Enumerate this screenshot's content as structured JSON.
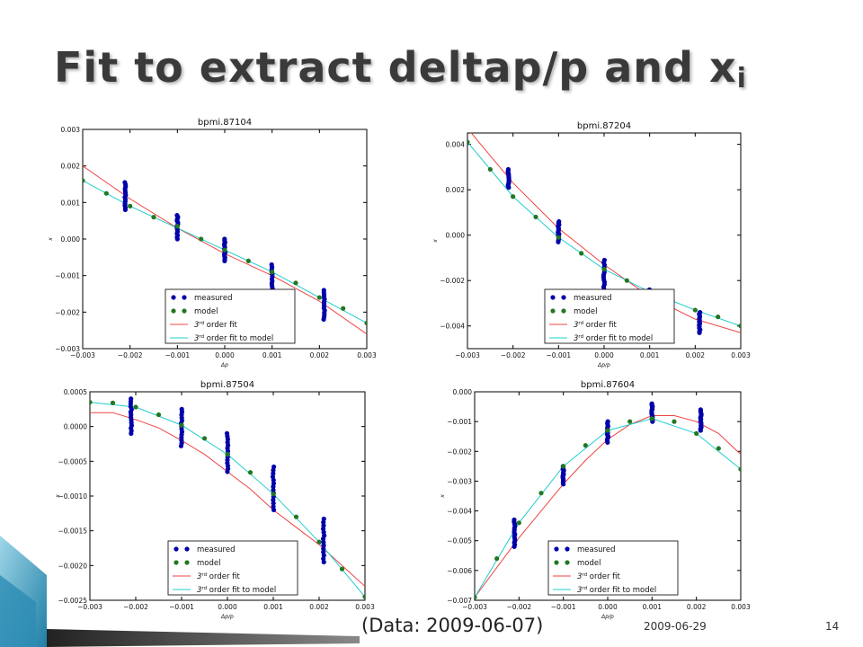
{
  "title": {
    "main": "Fit to extract deltap/p and x",
    "subscript": "i"
  },
  "footer": {
    "caption": "(Data: 2009-06-07)",
    "date": "2009-06-29",
    "page": "14"
  },
  "colors": {
    "measured": "#0000aa",
    "model": "#227722",
    "fit": "#ee4444",
    "fit_model": "#22cccc"
  },
  "chart_data": [
    {
      "type": "scatter",
      "title": "bpmi.87104",
      "xlabel": "Δp",
      "ylabel": "x",
      "xlim": [
        -0.003,
        0.003
      ],
      "ylim": [
        -0.003,
        0.003
      ],
      "xticks": [
        -0.003,
        -0.002,
        -0.001,
        0.0,
        0.001,
        0.002,
        0.003
      ],
      "yticks": [
        -0.003,
        -0.002,
        -0.001,
        0.0,
        0.001,
        0.002,
        0.003
      ],
      "xtick_labels": [
        "−0.003",
        "−0.002",
        "−0.001",
        "0.000",
        "0.001",
        "0.002",
        "0.003"
      ],
      "ytick_labels": [
        "−0.003",
        "−0.002",
        "−0.001",
        "0.000",
        "0.001",
        "0.002",
        "0.003"
      ],
      "legend": {
        "position": "bottom-center",
        "entries": [
          "measured",
          "model",
          "order fit",
          "order fit to model"
        ]
      },
      "measured": [
        {
          "x": -0.0021,
          "y_min": 0.0008,
          "y_max": 0.00155
        },
        {
          "x": -0.001,
          "y_min": 0.0,
          "y_max": 0.00065
        },
        {
          "x": 0.0,
          "y_min": -0.0006,
          "y_max": 0.0
        },
        {
          "x": 0.001,
          "y_min": -0.00155,
          "y_max": -0.0007
        },
        {
          "x": 0.0021,
          "y_min": -0.0022,
          "y_max": -0.0014
        }
      ],
      "model": {
        "x": [
          -0.003,
          -0.0025,
          -0.002,
          -0.0015,
          -0.001,
          -0.0005,
          0.0,
          0.0005,
          0.001,
          0.0015,
          0.002,
          0.0025,
          0.003
        ],
        "y": [
          0.0016,
          0.00125,
          0.0009,
          0.0006,
          0.00035,
          0.0,
          -0.0003,
          -0.0006,
          -0.0009,
          -0.0012,
          -0.0016,
          -0.0019,
          -0.0023
        ]
      },
      "fit": {
        "x": [
          -0.003,
          -0.002,
          -0.001,
          0.0,
          0.001,
          0.002,
          0.003
        ],
        "y": [
          0.002,
          0.0011,
          0.0003,
          -0.0004,
          -0.001,
          -0.0017,
          -0.0026
        ]
      },
      "fit_model": {
        "x": [
          -0.003,
          -0.002,
          -0.001,
          0.0,
          0.001,
          0.002,
          0.003
        ],
        "y": [
          0.0016,
          0.0009,
          0.0003,
          -0.0003,
          -0.0009,
          -0.0016,
          -0.0023
        ]
      }
    },
    {
      "type": "scatter",
      "title": "bpmi.87204",
      "xlabel": "Δp/p",
      "ylabel": "x",
      "xlim": [
        -0.003,
        0.003
      ],
      "ylim": [
        -0.005,
        0.0045
      ],
      "xticks": [
        -0.003,
        -0.002,
        -0.001,
        0.0,
        0.001,
        0.002,
        0.003
      ],
      "yticks": [
        -0.004,
        -0.002,
        0.0,
        0.002,
        0.004
      ],
      "xtick_labels": [
        "−0.003",
        "−0.002",
        "−0.001",
        "0.000",
        "0.001",
        "0.002",
        "0.003"
      ],
      "ytick_labels": [
        "−0.004",
        "−0.002",
        "0.000",
        "0.002",
        "0.004"
      ],
      "legend": {
        "position": "bottom-center",
        "entries": [
          "measured",
          "model",
          "order fit",
          "order fit to model"
        ]
      },
      "measured": [
        {
          "x": -0.0021,
          "y_min": 0.0021,
          "y_max": 0.0029
        },
        {
          "x": -0.001,
          "y_min": -0.0003,
          "y_max": 0.0006
        },
        {
          "x": 0.0,
          "y_min": -0.0025,
          "y_max": -0.0011
        },
        {
          "x": 0.001,
          "y_min": -0.0034,
          "y_max": -0.0024
        },
        {
          "x": 0.0021,
          "y_min": -0.0043,
          "y_max": -0.0034
        }
      ],
      "model": {
        "x": [
          -0.003,
          -0.0025,
          -0.002,
          -0.0015,
          -0.001,
          -0.0005,
          0.0,
          0.0005,
          0.001,
          0.0015,
          0.002,
          0.0025,
          0.003
        ],
        "y": [
          0.0041,
          0.0029,
          0.0017,
          0.0008,
          -0.0001,
          -0.0008,
          -0.0015,
          -0.002,
          -0.0025,
          -0.0029,
          -0.0033,
          -0.0036,
          -0.004
        ]
      },
      "fit": {
        "x": [
          -0.003,
          -0.002,
          -0.001,
          0.0,
          0.001,
          0.002,
          0.003
        ],
        "y": [
          0.0047,
          0.0023,
          0.0003,
          -0.0013,
          -0.0027,
          -0.0037,
          -0.0043
        ]
      },
      "fit_model": {
        "x": [
          -0.003,
          -0.002,
          -0.001,
          0.0,
          0.001,
          0.002,
          0.003
        ],
        "y": [
          0.0041,
          0.0017,
          -0.0001,
          -0.0015,
          -0.0025,
          -0.0033,
          -0.004
        ]
      }
    },
    {
      "type": "scatter",
      "title": "bpmi.87504",
      "xlabel": "Δp/p",
      "ylabel": "x",
      "xlim": [
        -0.003,
        0.003
      ],
      "ylim": [
        -0.0025,
        0.0005
      ],
      "xticks": [
        -0.003,
        -0.002,
        -0.001,
        0.0,
        0.001,
        0.002,
        0.003
      ],
      "yticks": [
        -0.0025,
        -0.002,
        -0.0015,
        -0.001,
        -0.0005,
        0.0,
        0.0005
      ],
      "xtick_labels": [
        "−0.003",
        "−0.002",
        "−0.001",
        "0.000",
        "0.001",
        "0.002",
        "0.003"
      ],
      "ytick_labels": [
        "−0.0025",
        "−0.0020",
        "−0.0015",
        "−0.0010",
        "−0.0005",
        "0.0000",
        "0.0005"
      ],
      "legend": {
        "position": "bottom-center",
        "entries": [
          "measured",
          "model",
          "order fit",
          "order fit to model"
        ]
      },
      "measured": [
        {
          "x": -0.0021,
          "y_min": -0.0001,
          "y_max": 0.0004
        },
        {
          "x": -0.001,
          "y_min": -0.00028,
          "y_max": 0.00025
        },
        {
          "x": 0.0,
          "y_min": -0.00065,
          "y_max": -0.0001
        },
        {
          "x": 0.001,
          "y_min": -0.0012,
          "y_max": -0.00058
        },
        {
          "x": 0.0021,
          "y_min": -0.00195,
          "y_max": -0.00133
        }
      ],
      "model": {
        "x": [
          -0.003,
          -0.0025,
          -0.002,
          -0.0015,
          -0.001,
          -0.0005,
          0.0,
          0.0005,
          0.001,
          0.0015,
          0.002,
          0.0025,
          0.003
        ],
        "y": [
          0.00035,
          0.00034,
          0.00028,
          0.00017,
          2e-05,
          -0.00017,
          -0.0004,
          -0.00066,
          -0.00097,
          -0.0013,
          -0.00166,
          -0.00205,
          -0.00245
        ]
      },
      "fit": {
        "x": [
          -0.003,
          -0.0025,
          -0.002,
          -0.0015,
          -0.001,
          -0.0005,
          0.0,
          0.0005,
          0.001,
          0.0015,
          0.002,
          0.0025,
          0.003
        ],
        "y": [
          0.0002,
          0.0002,
          0.0001,
          -2e-05,
          -0.0002,
          -0.0004,
          -0.00065,
          -0.0009,
          -0.0012,
          -0.00145,
          -0.0017,
          -0.002,
          -0.0023
        ]
      },
      "fit_model": {
        "x": [
          -0.003,
          -0.002,
          -0.001,
          0.0,
          0.001,
          0.002,
          0.003
        ],
        "y": [
          0.00035,
          0.00028,
          2e-05,
          -0.0004,
          -0.00097,
          -0.00166,
          -0.00245
        ]
      }
    },
    {
      "type": "scatter",
      "title": "bpmi.87604",
      "xlabel": "Δp/p",
      "ylabel": "x",
      "xlim": [
        -0.003,
        0.003
      ],
      "ylim": [
        -0.007,
        0.0
      ],
      "xticks": [
        -0.003,
        -0.002,
        -0.001,
        0.0,
        0.001,
        0.002,
        0.003
      ],
      "yticks": [
        -0.007,
        -0.006,
        -0.005,
        -0.004,
        -0.003,
        -0.002,
        -0.001,
        0.0
      ],
      "xtick_labels": [
        "−0.003",
        "−0.002",
        "−0.001",
        "0.000",
        "0.001",
        "0.002",
        "0.003"
      ],
      "ytick_labels": [
        "−0.007",
        "−0.006",
        "−0.005",
        "−0.004",
        "−0.003",
        "−0.002",
        "−0.001",
        "0.000"
      ],
      "legend": {
        "position": "bottom-center",
        "entries": [
          "measured",
          "model",
          "order fit",
          "order fit to model"
        ]
      },
      "measured": [
        {
          "x": -0.0021,
          "y_min": -0.0052,
          "y_max": -0.0043
        },
        {
          "x": -0.001,
          "y_min": -0.0031,
          "y_max": -0.0025
        },
        {
          "x": 0.0,
          "y_min": -0.0017,
          "y_max": -0.001
        },
        {
          "x": 0.001,
          "y_min": -0.001,
          "y_max": -0.0004
        },
        {
          "x": 0.0021,
          "y_min": -0.0013,
          "y_max": -0.0006
        }
      ],
      "model": {
        "x": [
          -0.003,
          -0.0025,
          -0.002,
          -0.0015,
          -0.001,
          -0.0005,
          0.0,
          0.0005,
          0.001,
          0.0015,
          0.002,
          0.0025,
          0.003
        ],
        "y": [
          -0.0069,
          -0.0056,
          -0.0044,
          -0.0034,
          -0.0025,
          -0.0018,
          -0.0013,
          -0.001,
          -0.0009,
          -0.001,
          -0.0014,
          -0.0019,
          -0.0026
        ]
      },
      "fit": {
        "x": [
          -0.003,
          -0.0025,
          -0.002,
          -0.0015,
          -0.001,
          -0.0005,
          0.0,
          0.0005,
          0.001,
          0.0015,
          0.002,
          0.0025,
          0.003
        ],
        "y": [
          -0.0069,
          -0.0059,
          -0.0049,
          -0.004,
          -0.0031,
          -0.0023,
          -0.0016,
          -0.0011,
          -0.0008,
          -0.0008,
          -0.001,
          -0.0014,
          -0.0021
        ]
      },
      "fit_model": {
        "x": [
          -0.003,
          -0.002,
          -0.001,
          0.0,
          0.001,
          0.002,
          0.003
        ],
        "y": [
          -0.0069,
          -0.0044,
          -0.0025,
          -0.0013,
          -0.0009,
          -0.0014,
          -0.0026
        ]
      }
    }
  ]
}
